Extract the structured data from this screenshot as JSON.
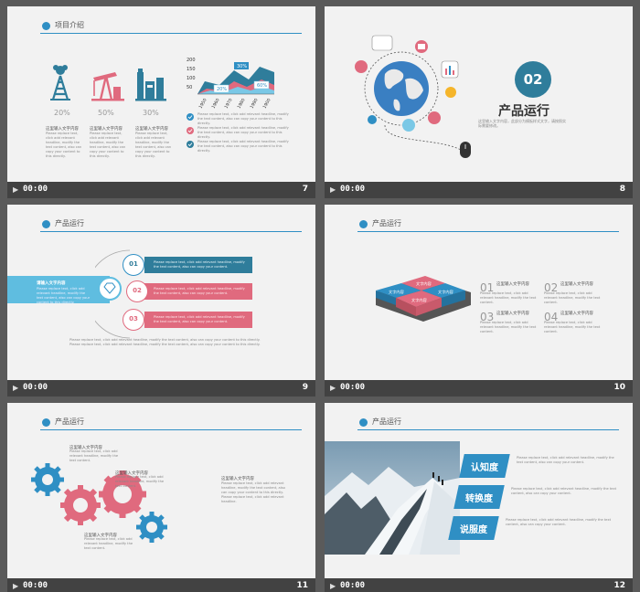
{
  "slides": [
    {
      "num": "7",
      "time": "00:00",
      "title": "项目介绍",
      "pcts": [
        "20%",
        "50%",
        "30%"
      ],
      "caption": "这里输入文字内容",
      "chart_ticks": [
        "200",
        "150",
        "100",
        "50"
      ],
      "chart_years": [
        "1950",
        "1960",
        "1970",
        "1980",
        "1990",
        "1900"
      ],
      "callouts": [
        "30%",
        "20%",
        "60%"
      ]
    },
    {
      "num": "8",
      "time": "00:00",
      "badge": "02",
      "title": "产品运行",
      "sub": "这里输入文字内容，此部分为模板样式文字，请按照实际需要修改。"
    },
    {
      "num": "9",
      "time": "00:00",
      "title": "产品运行",
      "banner": "请输入文字内容",
      "steps": [
        "01",
        "02",
        "03"
      ]
    },
    {
      "num": "10",
      "time": "00:00",
      "title": "产品运行",
      "cube": [
        "文字内容",
        "文字内容",
        "文字内容",
        "文字内容"
      ],
      "items": [
        {
          "n": "01",
          "h": "这里输入文字内容"
        },
        {
          "n": "02",
          "h": "这里输入文字内容"
        },
        {
          "n": "03",
          "h": "这里输入文字内容"
        },
        {
          "n": "04",
          "h": "这里输入文字内容"
        }
      ]
    },
    {
      "num": "11",
      "time": "00:00",
      "title": "产品运行",
      "labels": [
        "这里输入文字内容",
        "这里输入文字内容",
        "这里输入文字内容",
        "这里输入文字内容"
      ]
    },
    {
      "num": "12",
      "time": "00:00",
      "title": "产品运行",
      "tags": [
        "认知度",
        "转换度",
        "说服度"
      ]
    }
  ],
  "colors": {
    "blue": "#2f8fc4",
    "pink": "#e06a7e",
    "teal": "#2f7d9b",
    "bg": "#f2f2f2",
    "bar": "#424242"
  }
}
